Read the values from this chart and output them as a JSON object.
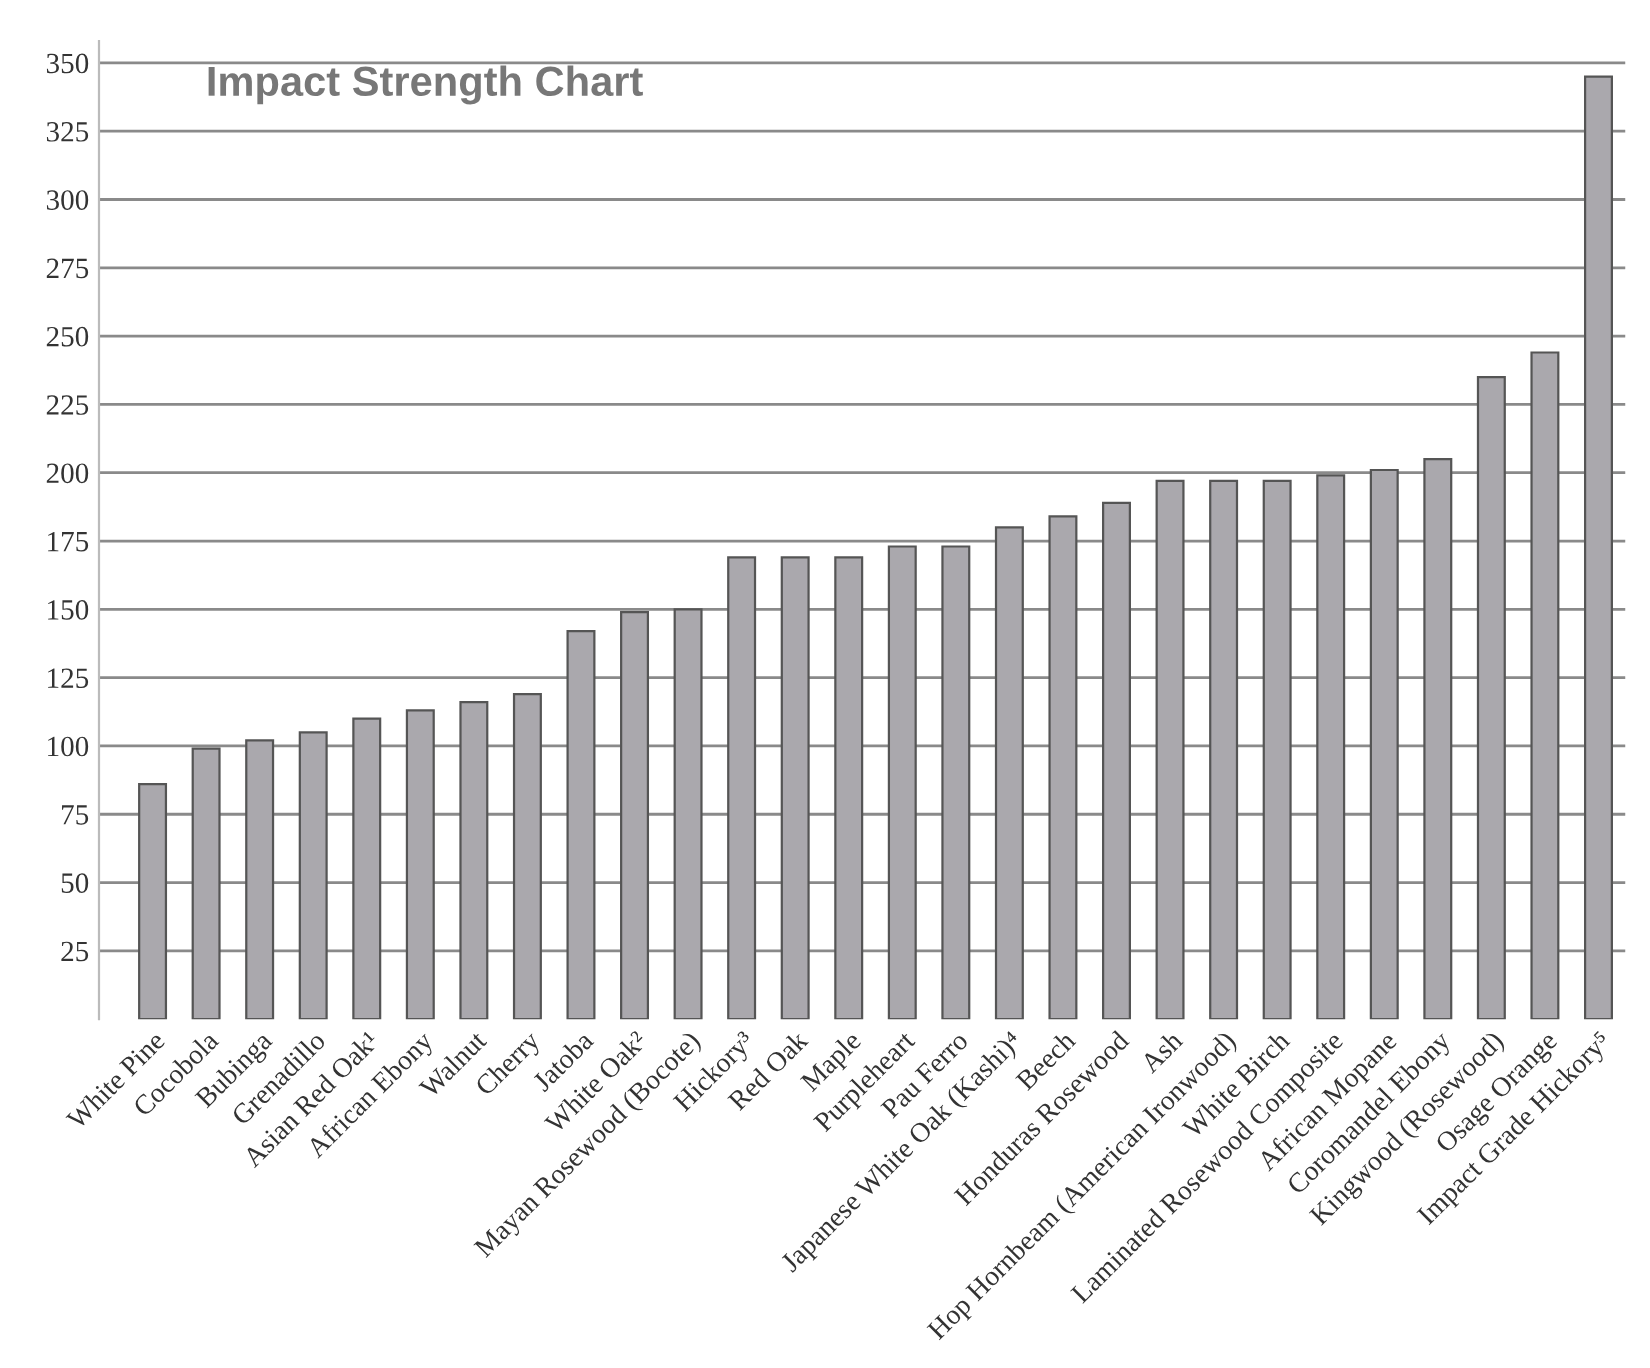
{
  "chart_data": {
    "type": "bar",
    "title": "Impact Strength Chart",
    "categories": [
      "White Pine",
      "Cocobola",
      "Bubinga",
      "Grenadillo",
      "Asian Red Oak¹",
      "African Ebony",
      "Walnut",
      "Cherry",
      "Jatoba",
      "White Oak²",
      "Mayan Rosewood (Bocote)",
      "Hickory³",
      "Red Oak",
      "Maple",
      "Purpleheart",
      "Pau Ferro",
      "Japanese White Oak (Kashi)⁴",
      "Beech",
      "Honduras Rosewood",
      "Ash",
      "Hop Hornbeam (American Ironwood)",
      "White Birch",
      "Laminated Rosewood Composite",
      "African Mopane",
      "Coromandel Ebony",
      "Kingwood (Rosewood)",
      "Osage Orange",
      "Impact Grade Hickory⁵"
    ],
    "values": [
      86,
      99,
      102,
      105,
      110,
      113,
      116,
      119,
      142,
      149,
      150,
      169,
      169,
      169,
      173,
      173,
      180,
      184,
      189,
      197,
      197,
      197,
      199,
      201,
      205,
      235,
      244,
      345
    ],
    "color": "#aaa8ad",
    "ylim": [
      0,
      358
    ],
    "yticks": [
      25,
      50,
      75,
      100,
      125,
      150,
      175,
      200,
      225,
      250,
      275,
      300,
      325,
      350
    ],
    "grid": "y"
  }
}
